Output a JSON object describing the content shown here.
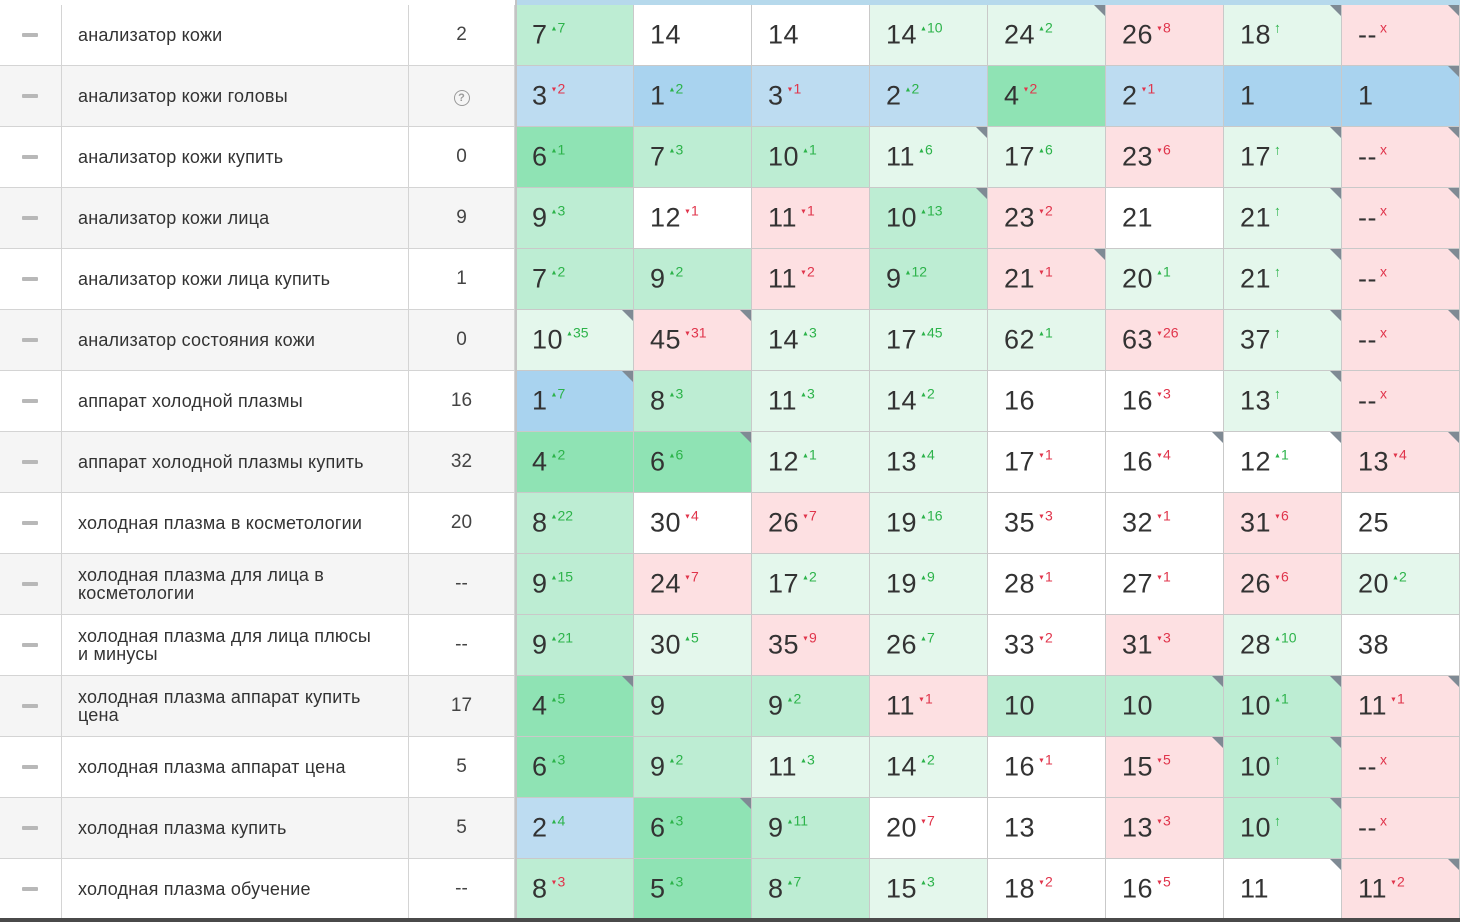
{
  "colors": {
    "white": "#ffffff",
    "red": "#fde0e2",
    "green_light": "#e4f7ec",
    "green": "#bdedd3",
    "green_dark": "#8fe3b4",
    "blue": "#a9d3ef",
    "blue_light": "#bddcf1"
  },
  "icons": {
    "toggle": "minus-icon",
    "unknown": "question-circle-icon",
    "changed": "corner-marker-icon"
  },
  "rows": [
    {
      "keyword": "анализатор кожи",
      "frequency": "2",
      "positions": [
        {
          "v": "7",
          "d": "7",
          "t": "up",
          "bg": "green"
        },
        {
          "v": "14",
          "d": "",
          "t": "",
          "bg": "white"
        },
        {
          "v": "14",
          "d": "",
          "t": "",
          "bg": "white"
        },
        {
          "v": "14",
          "d": "10",
          "t": "up",
          "bg": "green_light"
        },
        {
          "v": "24",
          "d": "2",
          "t": "up",
          "bg": "green_light",
          "corner": true
        },
        {
          "v": "26",
          "d": "8",
          "t": "down",
          "bg": "red"
        },
        {
          "v": "18",
          "d": "↑",
          "t": "new",
          "bg": "green_light",
          "corner": true
        },
        {
          "v": "--",
          "d": "x",
          "t": "gone",
          "bg": "red",
          "corner": true
        }
      ]
    },
    {
      "keyword": "анализатор кожи головы",
      "frequency": "?",
      "positions": [
        {
          "v": "3",
          "d": "2",
          "t": "down",
          "bg": "blue_light"
        },
        {
          "v": "1",
          "d": "2",
          "t": "up",
          "bg": "blue"
        },
        {
          "v": "3",
          "d": "1",
          "t": "down",
          "bg": "blue_light"
        },
        {
          "v": "2",
          "d": "2",
          "t": "up",
          "bg": "blue_light"
        },
        {
          "v": "4",
          "d": "2",
          "t": "down",
          "bg": "green_dark"
        },
        {
          "v": "2",
          "d": "1",
          "t": "down",
          "bg": "blue_light"
        },
        {
          "v": "1",
          "d": "",
          "t": "",
          "bg": "blue"
        },
        {
          "v": "1",
          "d": "",
          "t": "",
          "bg": "blue",
          "corner": true
        }
      ]
    },
    {
      "keyword": "анализатор кожи купить",
      "frequency": "0",
      "positions": [
        {
          "v": "6",
          "d": "1",
          "t": "up",
          "bg": "green_dark"
        },
        {
          "v": "7",
          "d": "3",
          "t": "up",
          "bg": "green"
        },
        {
          "v": "10",
          "d": "1",
          "t": "up",
          "bg": "green"
        },
        {
          "v": "11",
          "d": "6",
          "t": "up",
          "bg": "green_light",
          "corner": true
        },
        {
          "v": "17",
          "d": "6",
          "t": "up",
          "bg": "green_light"
        },
        {
          "v": "23",
          "d": "6",
          "t": "down",
          "bg": "red"
        },
        {
          "v": "17",
          "d": "↑",
          "t": "new",
          "bg": "green_light",
          "corner": true
        },
        {
          "v": "--",
          "d": "x",
          "t": "gone",
          "bg": "red",
          "corner": true
        }
      ]
    },
    {
      "keyword": "анализатор кожи лица",
      "frequency": "9",
      "positions": [
        {
          "v": "9",
          "d": "3",
          "t": "up",
          "bg": "green"
        },
        {
          "v": "12",
          "d": "1",
          "t": "down",
          "bg": "white"
        },
        {
          "v": "11",
          "d": "1",
          "t": "down",
          "bg": "red"
        },
        {
          "v": "10",
          "d": "13",
          "t": "up",
          "bg": "green",
          "corner": true
        },
        {
          "v": "23",
          "d": "2",
          "t": "down",
          "bg": "red"
        },
        {
          "v": "21",
          "d": "",
          "t": "",
          "bg": "white"
        },
        {
          "v": "21",
          "d": "↑",
          "t": "new",
          "bg": "green_light",
          "corner": true
        },
        {
          "v": "--",
          "d": "x",
          "t": "gone",
          "bg": "red",
          "corner": true
        }
      ]
    },
    {
      "keyword": "анализатор кожи лица купить",
      "frequency": "1",
      "positions": [
        {
          "v": "7",
          "d": "2",
          "t": "up",
          "bg": "green"
        },
        {
          "v": "9",
          "d": "2",
          "t": "up",
          "bg": "green"
        },
        {
          "v": "11",
          "d": "2",
          "t": "down",
          "bg": "red"
        },
        {
          "v": "9",
          "d": "12",
          "t": "up",
          "bg": "green"
        },
        {
          "v": "21",
          "d": "1",
          "t": "down",
          "bg": "red",
          "corner": true
        },
        {
          "v": "20",
          "d": "1",
          "t": "up",
          "bg": "green_light"
        },
        {
          "v": "21",
          "d": "↑",
          "t": "new",
          "bg": "green_light",
          "corner": true
        },
        {
          "v": "--",
          "d": "x",
          "t": "gone",
          "bg": "red",
          "corner": true
        }
      ]
    },
    {
      "keyword": "анализатор состояния кожи",
      "frequency": "0",
      "positions": [
        {
          "v": "10",
          "d": "35",
          "t": "up",
          "bg": "green_light",
          "corner": true
        },
        {
          "v": "45",
          "d": "31",
          "t": "down",
          "bg": "red",
          "corner": true
        },
        {
          "v": "14",
          "d": "3",
          "t": "up",
          "bg": "green_light"
        },
        {
          "v": "17",
          "d": "45",
          "t": "up",
          "bg": "green_light"
        },
        {
          "v": "62",
          "d": "1",
          "t": "up",
          "bg": "green_light"
        },
        {
          "v": "63",
          "d": "26",
          "t": "down",
          "bg": "red"
        },
        {
          "v": "37",
          "d": "↑",
          "t": "new",
          "bg": "green_light",
          "corner": true
        },
        {
          "v": "--",
          "d": "x",
          "t": "gone",
          "bg": "red",
          "corner": true
        }
      ]
    },
    {
      "keyword": "аппарат холодной плазмы",
      "frequency": "16",
      "positions": [
        {
          "v": "1",
          "d": "7",
          "t": "up",
          "bg": "blue",
          "corner": true
        },
        {
          "v": "8",
          "d": "3",
          "t": "up",
          "bg": "green"
        },
        {
          "v": "11",
          "d": "3",
          "t": "up",
          "bg": "green_light"
        },
        {
          "v": "14",
          "d": "2",
          "t": "up",
          "bg": "green_light"
        },
        {
          "v": "16",
          "d": "",
          "t": "",
          "bg": "white"
        },
        {
          "v": "16",
          "d": "3",
          "t": "down",
          "bg": "white"
        },
        {
          "v": "13",
          "d": "↑",
          "t": "new",
          "bg": "green_light",
          "corner": true
        },
        {
          "v": "--",
          "d": "x",
          "t": "gone",
          "bg": "red"
        }
      ]
    },
    {
      "keyword": "аппарат холодной плазмы купить",
      "frequency": "32",
      "positions": [
        {
          "v": "4",
          "d": "2",
          "t": "up",
          "bg": "green_dark"
        },
        {
          "v": "6",
          "d": "6",
          "t": "up",
          "bg": "green_dark",
          "corner": true
        },
        {
          "v": "12",
          "d": "1",
          "t": "up",
          "bg": "green_light"
        },
        {
          "v": "13",
          "d": "4",
          "t": "up",
          "bg": "green_light"
        },
        {
          "v": "17",
          "d": "1",
          "t": "down",
          "bg": "white"
        },
        {
          "v": "16",
          "d": "4",
          "t": "down",
          "bg": "white",
          "corner": true
        },
        {
          "v": "12",
          "d": "1",
          "t": "up",
          "bg": "white",
          "corner": true
        },
        {
          "v": "13",
          "d": "4",
          "t": "down",
          "bg": "red",
          "corner": true
        }
      ]
    },
    {
      "keyword": "холодная плазма в косметологии",
      "frequency": "20",
      "positions": [
        {
          "v": "8",
          "d": "22",
          "t": "up",
          "bg": "green"
        },
        {
          "v": "30",
          "d": "4",
          "t": "down",
          "bg": "white"
        },
        {
          "v": "26",
          "d": "7",
          "t": "down",
          "bg": "red"
        },
        {
          "v": "19",
          "d": "16",
          "t": "up",
          "bg": "green_light"
        },
        {
          "v": "35",
          "d": "3",
          "t": "down",
          "bg": "white"
        },
        {
          "v": "32",
          "d": "1",
          "t": "down",
          "bg": "white"
        },
        {
          "v": "31",
          "d": "6",
          "t": "down",
          "bg": "red"
        },
        {
          "v": "25",
          "d": "",
          "t": "",
          "bg": "white"
        }
      ]
    },
    {
      "keyword": "холодная плазма для лица в косметологии",
      "frequency": "--",
      "positions": [
        {
          "v": "9",
          "d": "15",
          "t": "up",
          "bg": "green"
        },
        {
          "v": "24",
          "d": "7",
          "t": "down",
          "bg": "red"
        },
        {
          "v": "17",
          "d": "2",
          "t": "up",
          "bg": "green_light"
        },
        {
          "v": "19",
          "d": "9",
          "t": "up",
          "bg": "green_light"
        },
        {
          "v": "28",
          "d": "1",
          "t": "down",
          "bg": "white"
        },
        {
          "v": "27",
          "d": "1",
          "t": "down",
          "bg": "white"
        },
        {
          "v": "26",
          "d": "6",
          "t": "down",
          "bg": "red"
        },
        {
          "v": "20",
          "d": "2",
          "t": "up",
          "bg": "green_light"
        }
      ]
    },
    {
      "keyword": "холодная плазма для лица плюсы и минусы",
      "frequency": "--",
      "positions": [
        {
          "v": "9",
          "d": "21",
          "t": "up",
          "bg": "green"
        },
        {
          "v": "30",
          "d": "5",
          "t": "up",
          "bg": "green_light"
        },
        {
          "v": "35",
          "d": "9",
          "t": "down",
          "bg": "red"
        },
        {
          "v": "26",
          "d": "7",
          "t": "up",
          "bg": "green_light"
        },
        {
          "v": "33",
          "d": "2",
          "t": "down",
          "bg": "white"
        },
        {
          "v": "31",
          "d": "3",
          "t": "down",
          "bg": "red"
        },
        {
          "v": "28",
          "d": "10",
          "t": "up",
          "bg": "green_light"
        },
        {
          "v": "38",
          "d": "",
          "t": "",
          "bg": "white"
        }
      ]
    },
    {
      "keyword": "холодная плазма аппарат купить цена",
      "frequency": "17",
      "positions": [
        {
          "v": "4",
          "d": "5",
          "t": "up",
          "bg": "green_dark",
          "corner": true
        },
        {
          "v": "9",
          "d": "",
          "t": "",
          "bg": "green"
        },
        {
          "v": "9",
          "d": "2",
          "t": "up",
          "bg": "green"
        },
        {
          "v": "11",
          "d": "1",
          "t": "down",
          "bg": "red"
        },
        {
          "v": "10",
          "d": "",
          "t": "",
          "bg": "green"
        },
        {
          "v": "10",
          "d": "",
          "t": "",
          "bg": "green",
          "corner": true
        },
        {
          "v": "10",
          "d": "1",
          "t": "up",
          "bg": "green",
          "corner": true
        },
        {
          "v": "11",
          "d": "1",
          "t": "down",
          "bg": "red",
          "corner": true
        }
      ]
    },
    {
      "keyword": "холодная плазма аппарат цена",
      "frequency": "5",
      "positions": [
        {
          "v": "6",
          "d": "3",
          "t": "up",
          "bg": "green_dark"
        },
        {
          "v": "9",
          "d": "2",
          "t": "up",
          "bg": "green"
        },
        {
          "v": "11",
          "d": "3",
          "t": "up",
          "bg": "green_light"
        },
        {
          "v": "14",
          "d": "2",
          "t": "up",
          "bg": "green_light"
        },
        {
          "v": "16",
          "d": "1",
          "t": "down",
          "bg": "white"
        },
        {
          "v": "15",
          "d": "5",
          "t": "down",
          "bg": "red",
          "corner": true
        },
        {
          "v": "10",
          "d": "↑",
          "t": "new",
          "bg": "green",
          "corner": true
        },
        {
          "v": "--",
          "d": "x",
          "t": "gone",
          "bg": "red"
        }
      ]
    },
    {
      "keyword": "холодная плазма купить",
      "frequency": "5",
      "positions": [
        {
          "v": "2",
          "d": "4",
          "t": "up",
          "bg": "blue_light"
        },
        {
          "v": "6",
          "d": "3",
          "t": "up",
          "bg": "green_dark",
          "corner": true
        },
        {
          "v": "9",
          "d": "11",
          "t": "up",
          "bg": "green"
        },
        {
          "v": "20",
          "d": "7",
          "t": "down",
          "bg": "white"
        },
        {
          "v": "13",
          "d": "",
          "t": "",
          "bg": "white"
        },
        {
          "v": "13",
          "d": "3",
          "t": "down",
          "bg": "red"
        },
        {
          "v": "10",
          "d": "↑",
          "t": "new",
          "bg": "green",
          "corner": true
        },
        {
          "v": "--",
          "d": "x",
          "t": "gone",
          "bg": "red"
        }
      ]
    },
    {
      "keyword": "холодная плазма обучение",
      "frequency": "--",
      "positions": [
        {
          "v": "8",
          "d": "3",
          "t": "down",
          "bg": "green"
        },
        {
          "v": "5",
          "d": "3",
          "t": "up",
          "bg": "green_dark"
        },
        {
          "v": "8",
          "d": "7",
          "t": "up",
          "bg": "green"
        },
        {
          "v": "15",
          "d": "3",
          "t": "up",
          "bg": "green_light"
        },
        {
          "v": "18",
          "d": "2",
          "t": "down",
          "bg": "white"
        },
        {
          "v": "16",
          "d": "5",
          "t": "down",
          "bg": "white"
        },
        {
          "v": "11",
          "d": "",
          "t": "",
          "bg": "white",
          "corner": true
        },
        {
          "v": "11",
          "d": "2",
          "t": "down",
          "bg": "red",
          "corner": true
        }
      ]
    }
  ]
}
